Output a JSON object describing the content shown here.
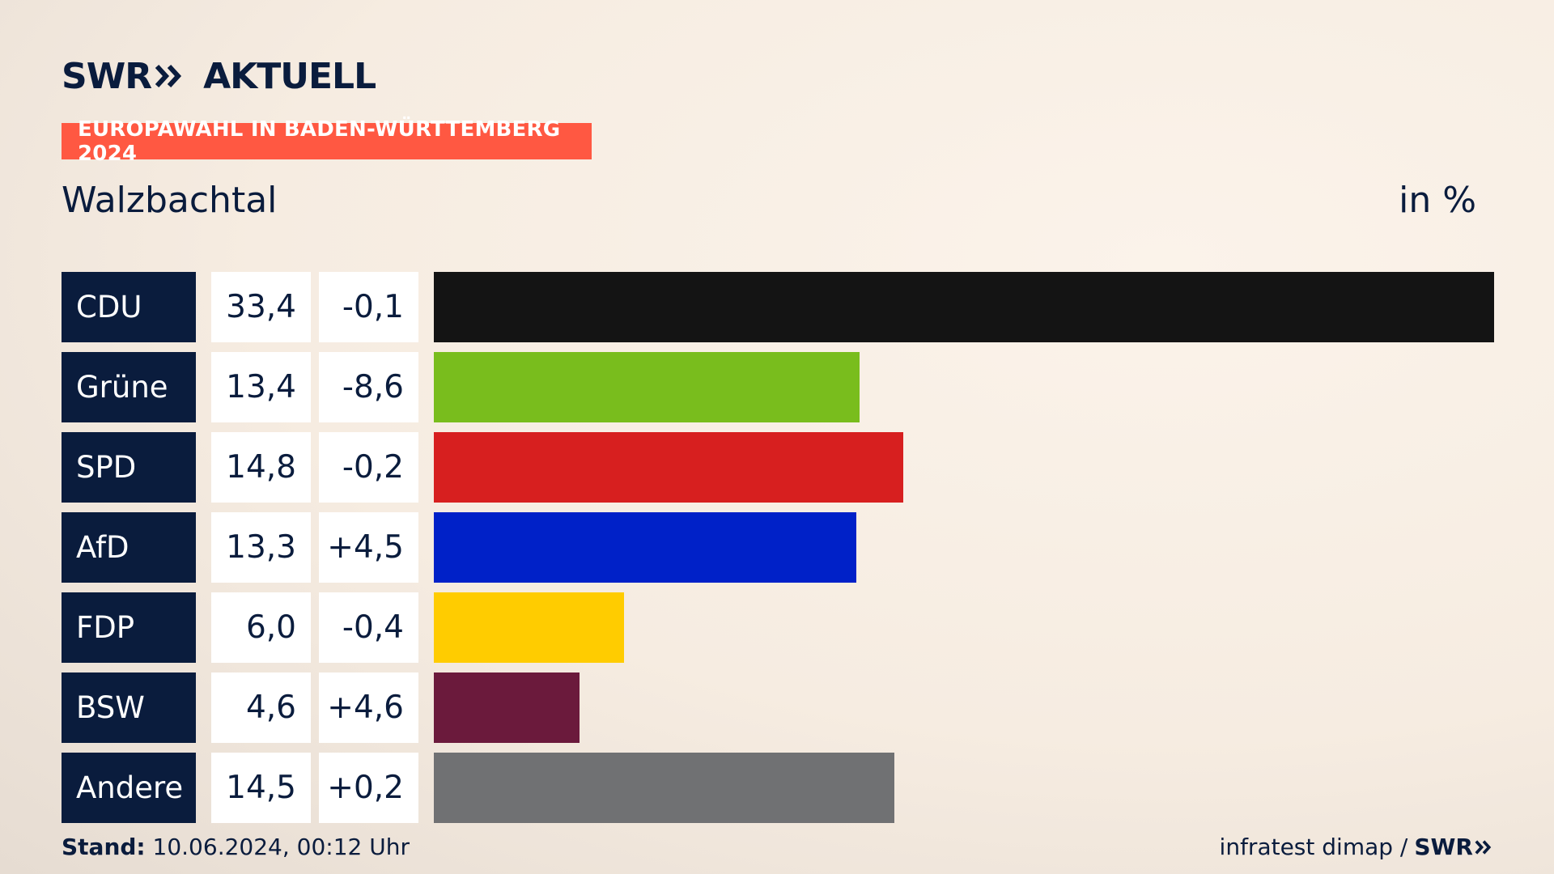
{
  "header": {
    "brand": "SWR",
    "brand_suffix": "AKTUELL",
    "badge": "EUROPAWAHL IN BADEN-WÜRTTEMBERG 2024",
    "subtitle": "Walzbachtal",
    "unit": "in %"
  },
  "chart_data": {
    "type": "bar",
    "orientation": "horizontal",
    "categories": [
      "CDU",
      "Grüne",
      "SPD",
      "AfD",
      "FDP",
      "BSW",
      "Andere"
    ],
    "values": [
      33.4,
      13.4,
      14.8,
      13.3,
      6.0,
      4.6,
      14.5
    ],
    "value_labels": [
      "33,4",
      "13,4",
      "14,8",
      "13,3",
      "6,0",
      "4,6",
      "14,5"
    ],
    "diff_labels": [
      "-0,1",
      "-8,6",
      "-0,2",
      "+4,5",
      "-0,4",
      "+4,6",
      "+0,2"
    ],
    "colors": [
      "#141414",
      "#79bd1d",
      "#d71f1f",
      "#0021c8",
      "#ffcc00",
      "#6b1a3c",
      "#707173"
    ],
    "unit": "in %"
  },
  "footer": {
    "stand_label": "Stand:",
    "stand_value": "10.06.2024, 00:12 Uhr",
    "source": "infratest dimap /",
    "source_brand": "SWR"
  },
  "colors": {
    "navy": "#0a1c3d",
    "badge": "#ff5842"
  }
}
